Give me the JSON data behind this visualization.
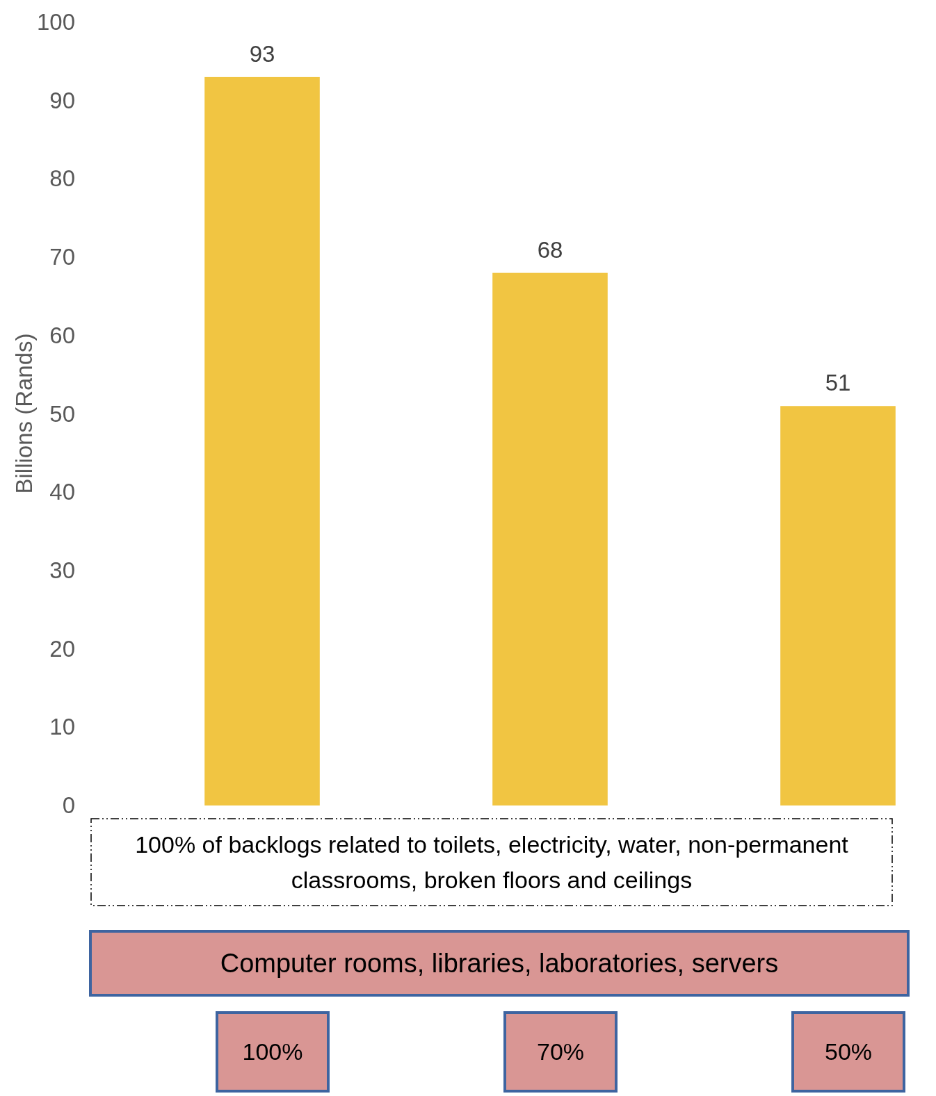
{
  "chart_data": {
    "type": "bar",
    "ylabel": "Billions (Rands)",
    "categories": [
      null,
      null,
      null
    ],
    "values": [
      93,
      68,
      51
    ],
    "color": "#f1c542",
    "ylim": [
      0,
      100
    ],
    "yticks": [
      0,
      10,
      20,
      30,
      40,
      50,
      60,
      70,
      80,
      90,
      100
    ],
    "grid": false,
    "data_labels": true,
    "annotations": [
      "100% of backlogs related to toilets, electricity, water, non-permanent classrooms, broken floors and ceilings",
      "Computer rooms, libraries, laboratories, servers",
      "100%",
      "70%",
      "50%"
    ]
  }
}
